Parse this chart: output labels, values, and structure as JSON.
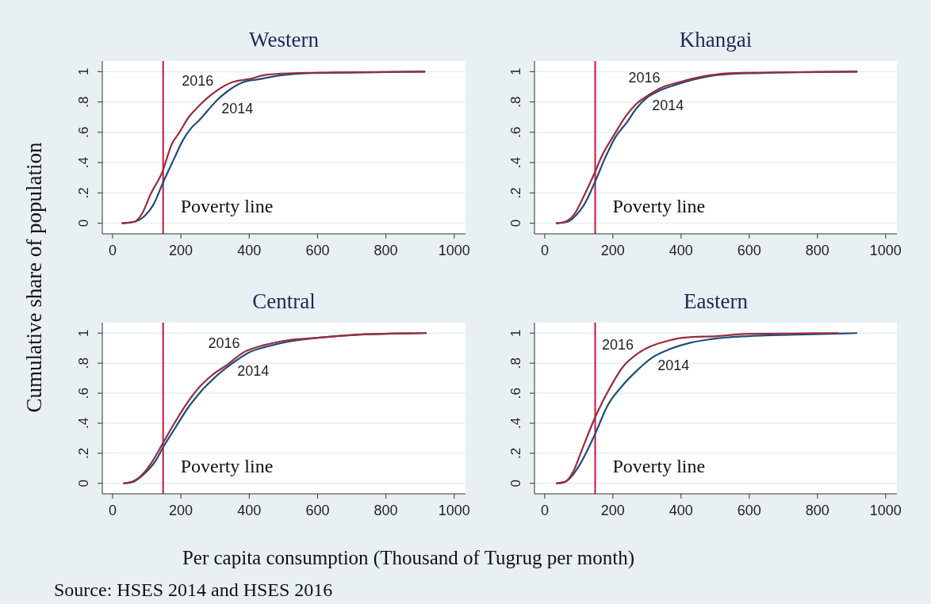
{
  "chart_data": [
    {
      "type": "line",
      "title": "Western",
      "ylabel": "Cumulative share of population",
      "xlim": [
        -30,
        1033
      ],
      "ylim": [
        -0.07,
        1.07
      ],
      "xticks": [
        0,
        200,
        400,
        600,
        800,
        1000
      ],
      "yticks": [
        {
          "value": 0,
          "label": "0"
        },
        {
          "value": 0.2,
          "label": ".2"
        },
        {
          "value": 0.4,
          "label": ".4"
        },
        {
          "value": 0.6,
          "label": ".6"
        },
        {
          "value": 0.8,
          "label": ".8"
        },
        {
          "value": 1,
          "label": "1"
        }
      ],
      "grid": "y",
      "legend": false,
      "ref_lines": [
        {
          "axis": "x",
          "value": 148,
          "label": "Poverty line",
          "color": "#d0103a"
        }
      ],
      "series": [
        {
          "name": "2014",
          "color": "#1f4e79",
          "x": [
            29,
            64,
            95,
            119,
            148,
            181,
            204,
            231,
            254,
            281,
            305,
            336,
            382,
            429,
            490,
            568,
            723,
            913
          ],
          "values": [
            0,
            0.01,
            0.05,
            0.12,
            0.27,
            0.43,
            0.54,
            0.63,
            0.68,
            0.75,
            0.81,
            0.87,
            0.93,
            0.95,
            0.975,
            0.99,
            0.995,
            1
          ]
        },
        {
          "name": "2016",
          "color": "#9b2c3c",
          "x": [
            29,
            64,
            88,
            111,
            146,
            173,
            196,
            223,
            247,
            274,
            305,
            350,
            398,
            452,
            529,
            646,
            913
          ],
          "values": [
            0,
            0.01,
            0.07,
            0.19,
            0.34,
            0.52,
            0.6,
            0.7,
            0.76,
            0.82,
            0.875,
            0.93,
            0.95,
            0.98,
            0.99,
            0.995,
            1
          ]
        }
      ]
    },
    {
      "type": "line",
      "title": "Khangai",
      "xlim": [
        -30,
        1033
      ],
      "ylim": [
        -0.07,
        1.07
      ],
      "xticks": [
        0,
        200,
        400,
        600,
        800,
        1000
      ],
      "yticks": [
        {
          "value": 0,
          "label": "0"
        },
        {
          "value": 0.2,
          "label": ".2"
        },
        {
          "value": 0.4,
          "label": ".4"
        },
        {
          "value": 0.6,
          "label": ".6"
        },
        {
          "value": 0.8,
          "label": ".8"
        },
        {
          "value": 1,
          "label": "1"
        }
      ],
      "grid": "y",
      "legend": false,
      "ref_lines": [
        {
          "axis": "x",
          "value": 148,
          "label": "Poverty line",
          "color": "#d0103a"
        }
      ],
      "series": [
        {
          "name": "2014",
          "color": "#1f4e79",
          "x": [
            35,
            68,
            91,
            115,
            147,
            177,
            208,
            239,
            270,
            301,
            332,
            379,
            441,
            518,
            619,
            915
          ],
          "values": [
            0,
            0.01,
            0.05,
            0.12,
            0.27,
            0.43,
            0.57,
            0.66,
            0.76,
            0.83,
            0.87,
            0.91,
            0.95,
            0.98,
            0.99,
            1
          ]
        },
        {
          "name": "2016",
          "color": "#9b2c3c",
          "x": [
            35,
            60,
            87,
            115,
            146,
            169,
            200,
            239,
            270,
            301,
            348,
            394,
            456,
            542,
            915
          ],
          "values": [
            0,
            0.01,
            0.06,
            0.18,
            0.33,
            0.45,
            0.57,
            0.71,
            0.79,
            0.84,
            0.9,
            0.93,
            0.965,
            0.99,
            1
          ]
        }
      ]
    },
    {
      "type": "line",
      "title": "Central",
      "xlabel": "Per capita consumption (Thousand of Tugrug per month)",
      "annotations": [
        "Source: HSES 2014 and HSES 2016"
      ],
      "xlim": [
        -30,
        1033
      ],
      "ylim": [
        -0.07,
        1.07
      ],
      "xticks": [
        0,
        200,
        400,
        600,
        800,
        1000
      ],
      "yticks": [
        {
          "value": 0,
          "label": "0"
        },
        {
          "value": 0.2,
          "label": ".2"
        },
        {
          "value": 0.4,
          "label": ".4"
        },
        {
          "value": 0.6,
          "label": ".6"
        },
        {
          "value": 0.8,
          "label": ".8"
        },
        {
          "value": 1,
          "label": "1"
        }
      ],
      "grid": "y",
      "legend": false,
      "ref_lines": [
        {
          "axis": "x",
          "value": 148,
          "label": "Poverty line",
          "color": "#d0103a"
        }
      ],
      "series": [
        {
          "name": "2014",
          "color": "#1f4e79",
          "x": [
            33,
            60,
            91,
            126,
            148,
            181,
            220,
            258,
            297,
            351,
            398,
            452,
            506,
            607,
            723,
            917
          ],
          "values": [
            0,
            0.01,
            0.06,
            0.15,
            0.24,
            0.36,
            0.5,
            0.61,
            0.7,
            0.8,
            0.87,
            0.91,
            0.94,
            0.97,
            0.99,
            1
          ]
        },
        {
          "name": "2016",
          "color": "#9b2c3c",
          "x": [
            33,
            57,
            88,
            115,
            148,
            181,
            220,
            258,
            297,
            336,
            382,
            444,
            506,
            607,
            723,
            917
          ],
          "values": [
            0,
            0.01,
            0.06,
            0.14,
            0.27,
            0.4,
            0.54,
            0.65,
            0.73,
            0.79,
            0.87,
            0.92,
            0.95,
            0.97,
            0.99,
            1
          ]
        }
      ]
    },
    {
      "type": "line",
      "title": "Eastern",
      "xlim": [
        -30,
        1033
      ],
      "ylim": [
        -0.07,
        1.07
      ],
      "xticks": [
        0,
        200,
        400,
        600,
        800,
        1000
      ],
      "yticks": [
        {
          "value": 0,
          "label": "0"
        },
        {
          "value": 0.2,
          "label": ".2"
        },
        {
          "value": 0.4,
          "label": ".4"
        },
        {
          "value": 0.6,
          "label": ".6"
        },
        {
          "value": 0.8,
          "label": ".8"
        },
        {
          "value": 1,
          "label": "1"
        }
      ],
      "grid": "y",
      "legend": false,
      "ref_lines": [
        {
          "axis": "x",
          "value": 148,
          "label": "Poverty line",
          "color": "#d0103a"
        }
      ],
      "series": [
        {
          "name": "2014",
          "color": "#1f4e79",
          "x": [
            35,
            60,
            99,
            123,
            148,
            185,
            224,
            270,
            317,
            363,
            425,
            488,
            596,
            736,
            915
          ],
          "values": [
            0,
            0.01,
            0.11,
            0.21,
            0.33,
            0.52,
            0.64,
            0.75,
            0.84,
            0.89,
            0.935,
            0.96,
            0.98,
            0.99,
            1
          ]
        },
        {
          "name": "2016",
          "color": "#9b2c3c",
          "x": [
            35,
            60,
            84,
            107,
            146,
            185,
            231,
            270,
            309,
            363,
            410,
            503,
            596,
            860
          ],
          "values": [
            0,
            0.01,
            0.08,
            0.21,
            0.43,
            0.61,
            0.78,
            0.86,
            0.91,
            0.95,
            0.97,
            0.98,
            0.995,
            1
          ]
        }
      ]
    }
  ]
}
